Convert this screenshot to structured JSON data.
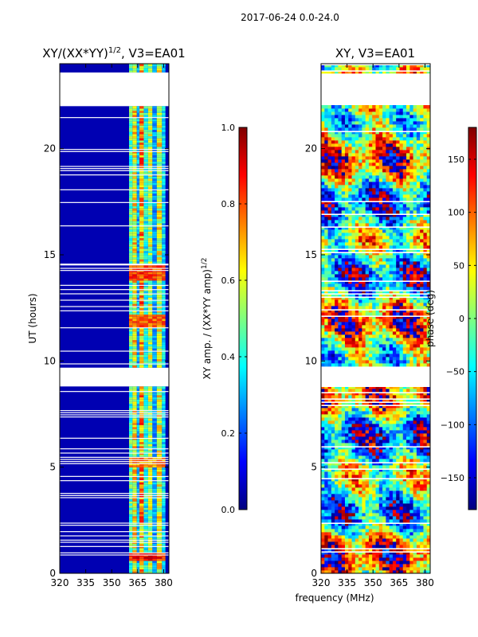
{
  "figure": {
    "suptitle": "2017-06-24 0.0-24.0",
    "shared_xlabel": "frequency (MHz)"
  },
  "colormap": [
    "#00007f",
    "#0000ff",
    "#007fff",
    "#00ffff",
    "#7fff7f",
    "#ffff00",
    "#ff7f00",
    "#ff0000",
    "#7f0000"
  ],
  "chart_data": [
    {
      "type": "heatmap",
      "title_main": "XY/(XX*YY)",
      "title_sup": "1/2",
      "title_suffix": ", V3=EA01",
      "xlabel": "",
      "ylabel": "UT (hours)",
      "xlim": [
        320,
        383
      ],
      "ylim": [
        0,
        24
      ],
      "xticks": [
        320,
        335,
        350,
        365,
        380
      ],
      "yticks": [
        0,
        5,
        10,
        15,
        20
      ],
      "quantity": "normalized amplitude",
      "vmin": 0.0,
      "vmax": 1.0,
      "background_value": 0.05,
      "channel_bands": [
        {
          "f0": 360,
          "f1": 362,
          "value": 0.45
        },
        {
          "f0": 362,
          "f1": 364.5,
          "value": 0.62
        },
        {
          "f0": 364.5,
          "f1": 366,
          "value": 0.3
        },
        {
          "f0": 366,
          "f1": 368.5,
          "value": 0.7
        },
        {
          "f0": 368.5,
          "f1": 371,
          "value": 0.4
        },
        {
          "f0": 371,
          "f1": 373.5,
          "value": 0.55
        },
        {
          "f0": 373.5,
          "f1": 376,
          "value": 0.28
        },
        {
          "f0": 376,
          "f1": 379,
          "value": 0.6
        },
        {
          "f0": 379,
          "f1": 381,
          "value": 0.35
        }
      ],
      "hot_spots": [
        {
          "t0": 13.8,
          "t1": 14.5,
          "value": 0.9
        },
        {
          "t0": 11.6,
          "t1": 12.2,
          "value": 0.85
        },
        {
          "t0": 0.6,
          "t1": 1.0,
          "value": 0.95
        },
        {
          "t0": 5.0,
          "t1": 5.5,
          "value": 0.8
        }
      ],
      "gaps_hours": [
        [
          22.0,
          23.6
        ],
        [
          8.8,
          9.7
        ],
        [
          14.55,
          14.62
        ]
      ]
    },
    {
      "type": "colorbar",
      "label_main": "XY amp. / (XX*YY amp)",
      "label_sup": "1/2",
      "vmin": 0.0,
      "vmax": 1.0,
      "ticks": [
        0.0,
        0.2,
        0.4,
        0.6,
        0.8,
        1.0
      ],
      "tick_labels": [
        "0.0",
        "0.2",
        "0.4",
        "0.6",
        "0.8",
        "1.0"
      ]
    },
    {
      "type": "heatmap",
      "title": "XY, V3=EA01",
      "xlabel": "frequency (MHz)",
      "ylabel": "",
      "xlim": [
        320,
        383
      ],
      "ylim": [
        0,
        24
      ],
      "xticks": [
        320,
        335,
        350,
        365,
        380
      ],
      "yticks": [
        0,
        5,
        10,
        15,
        20
      ],
      "quantity": "phase (deg)",
      "vmin": -180,
      "vmax": 180,
      "gaps_hours": [
        [
          22.0,
          23.6
        ],
        [
          8.8,
          9.7
        ]
      ]
    },
    {
      "type": "colorbar",
      "label": "phase (deg)",
      "vmin": -180,
      "vmax": 180,
      "ticks": [
        -150,
        -100,
        -50,
        0,
        50,
        100,
        150
      ],
      "tick_labels": [
        "−150",
        "−100",
        "−50",
        "0",
        "50",
        "100",
        "150"
      ]
    }
  ]
}
